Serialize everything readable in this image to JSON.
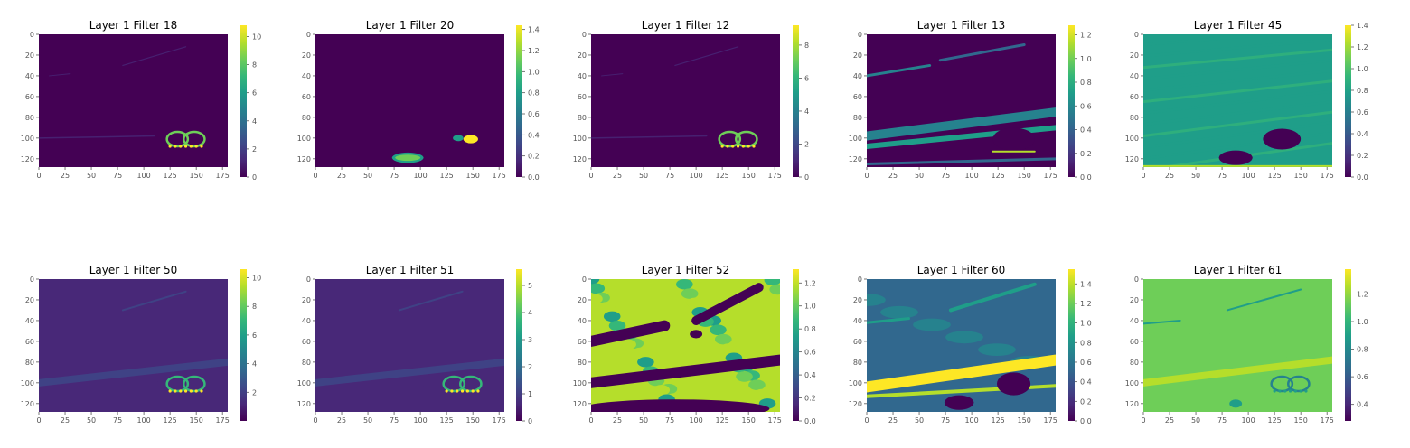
{
  "colors": {
    "viridis": [
      "#440154",
      "#482878",
      "#3e4989",
      "#31688e",
      "#26828e",
      "#1f9e89",
      "#35b779",
      "#6ece58",
      "#b5de2b",
      "#fde725"
    ]
  },
  "chart_data": [
    {
      "type": "heatmap",
      "title": "Layer 1 Filter 18",
      "xlim": [
        0,
        180
      ],
      "ylim": [
        0,
        128
      ],
      "x_ticks": [
        "0",
        "25",
        "50",
        "75",
        "100",
        "125",
        "150",
        "175"
      ],
      "y_ticks": [
        "0",
        "20",
        "40",
        "60",
        "80",
        "100",
        "120"
      ],
      "colorbar_range": [
        0,
        10.8
      ],
      "colorbar_ticks": [
        "0",
        "2",
        "4",
        "6",
        "8",
        "10"
      ],
      "pattern": "sparse"
    },
    {
      "type": "heatmap",
      "title": "Layer 1 Filter 20",
      "xlim": [
        0,
        180
      ],
      "ylim": [
        0,
        128
      ],
      "x_ticks": [
        "0",
        "25",
        "50",
        "75",
        "100",
        "125",
        "150",
        "175"
      ],
      "y_ticks": [
        "0",
        "20",
        "40",
        "60",
        "80",
        "100",
        "120"
      ],
      "colorbar_range": [
        0,
        1.44
      ],
      "colorbar_ticks": [
        "0.0",
        "0.2",
        "0.4",
        "0.6",
        "0.8",
        "1.0",
        "1.2",
        "1.4"
      ],
      "pattern": "blobs"
    },
    {
      "type": "heatmap",
      "title": "Layer 1 Filter 12",
      "xlim": [
        0,
        180
      ],
      "ylim": [
        0,
        128
      ],
      "x_ticks": [
        "0",
        "25",
        "50",
        "75",
        "100",
        "125",
        "150",
        "175"
      ],
      "y_ticks": [
        "0",
        "20",
        "40",
        "60",
        "80",
        "100",
        "120"
      ],
      "colorbar_range": [
        0,
        9.2
      ],
      "colorbar_ticks": [
        "0",
        "2",
        "4",
        "6",
        "8"
      ],
      "pattern": "sparse"
    },
    {
      "type": "heatmap",
      "title": "Layer 1 Filter 13",
      "xlim": [
        0,
        180
      ],
      "ylim": [
        0,
        128
      ],
      "x_ticks": [
        "0",
        "25",
        "50",
        "75",
        "100",
        "125",
        "150",
        "175"
      ],
      "y_ticks": [
        "0",
        "20",
        "40",
        "60",
        "80",
        "100",
        "120"
      ],
      "colorbar_range": [
        0,
        1.28
      ],
      "colorbar_ticks": [
        "0.0",
        "0.2",
        "0.4",
        "0.6",
        "0.8",
        "1.0",
        "1.2"
      ],
      "pattern": "streaks"
    },
    {
      "type": "heatmap",
      "title": "Layer 1 Filter 45",
      "xlim": [
        0,
        180
      ],
      "ylim": [
        0,
        128
      ],
      "x_ticks": [
        "0",
        "25",
        "50",
        "75",
        "100",
        "125",
        "150",
        "175"
      ],
      "y_ticks": [
        "0",
        "20",
        "40",
        "60",
        "80",
        "100",
        "120"
      ],
      "colorbar_range": [
        0,
        1.4
      ],
      "colorbar_ticks": [
        "0.0",
        "0.2",
        "0.4",
        "0.6",
        "0.8",
        "1.0",
        "1.2",
        "1.4"
      ],
      "pattern": "field"
    },
    {
      "type": "heatmap",
      "title": "Layer 1 Filter 50",
      "xlim": [
        0,
        180
      ],
      "ylim": [
        0,
        128
      ],
      "x_ticks": [
        "0",
        "25",
        "50",
        "75",
        "100",
        "125",
        "150",
        "175"
      ],
      "y_ticks": [
        "0",
        "20",
        "40",
        "60",
        "80",
        "100",
        "120"
      ],
      "colorbar_range": [
        0,
        10.6
      ],
      "colorbar_ticks": [
        "2",
        "4",
        "6",
        "8",
        "10"
      ],
      "pattern": "dim"
    },
    {
      "type": "heatmap",
      "title": "Layer 1 Filter 51",
      "xlim": [
        0,
        180
      ],
      "ylim": [
        0,
        128
      ],
      "x_ticks": [
        "0",
        "25",
        "50",
        "75",
        "100",
        "125",
        "150",
        "175"
      ],
      "y_ticks": [
        "0",
        "20",
        "40",
        "60",
        "80",
        "100",
        "120"
      ],
      "colorbar_range": [
        0,
        5.6
      ],
      "colorbar_ticks": [
        "0",
        "1",
        "2",
        "3",
        "4",
        "5"
      ],
      "pattern": "dim"
    },
    {
      "type": "heatmap",
      "title": "Layer 1 Filter 52",
      "xlim": [
        0,
        180
      ],
      "ylim": [
        0,
        128
      ],
      "x_ticks": [
        "0",
        "25",
        "50",
        "75",
        "100",
        "125",
        "150",
        "175"
      ],
      "y_ticks": [
        "0",
        "20",
        "40",
        "60",
        "80",
        "100",
        "120"
      ],
      "colorbar_range": [
        0,
        1.32
      ],
      "colorbar_ticks": [
        "0.0",
        "0.2",
        "0.4",
        "0.6",
        "0.8",
        "1.0",
        "1.2"
      ],
      "pattern": "bright"
    },
    {
      "type": "heatmap",
      "title": "Layer 1 Filter 60",
      "xlim": [
        0,
        180
      ],
      "ylim": [
        0,
        128
      ],
      "x_ticks": [
        "0",
        "25",
        "50",
        "75",
        "100",
        "125",
        "150",
        "175"
      ],
      "y_ticks": [
        "0",
        "20",
        "40",
        "60",
        "80",
        "100",
        "120"
      ],
      "colorbar_range": [
        0,
        1.55
      ],
      "colorbar_ticks": [
        "0.0",
        "0.2",
        "0.4",
        "0.6",
        "0.8",
        "1.0",
        "1.2",
        "1.4"
      ],
      "pattern": "bands"
    },
    {
      "type": "heatmap",
      "title": "Layer 1 Filter 61",
      "xlim": [
        0,
        180
      ],
      "ylim": [
        0,
        128
      ],
      "x_ticks": [
        "0",
        "25",
        "50",
        "75",
        "100",
        "125",
        "150",
        "175"
      ],
      "y_ticks": [
        "0",
        "20",
        "40",
        "60",
        "80",
        "100",
        "120"
      ],
      "colorbar_range": [
        0.28,
        1.38
      ],
      "colorbar_ticks": [
        "0.4",
        "0.6",
        "0.8",
        "1.0",
        "1.2"
      ],
      "pattern": "greenfield"
    }
  ]
}
